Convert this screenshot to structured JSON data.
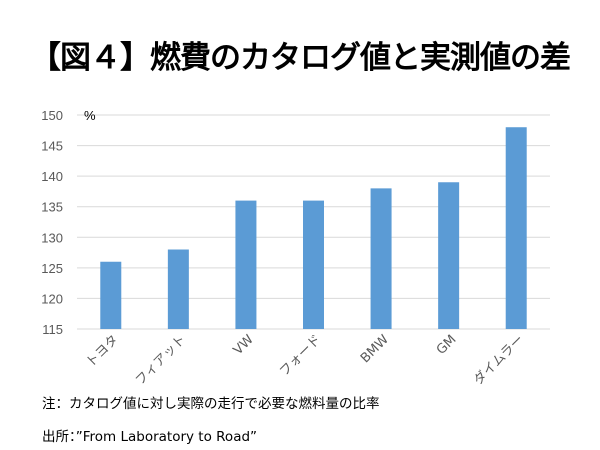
{
  "chart_data": {
    "type": "bar",
    "title": "【図４】燃費のカタログ値と実測値の差",
    "ylabel": "%",
    "xlabel": "",
    "categories": [
      "トヨタ",
      "フィアット",
      "VW",
      "フォード",
      "BMW",
      "GM",
      "ダイムラー"
    ],
    "values": [
      126,
      128,
      136,
      136,
      138,
      139,
      148
    ],
    "ylim": [
      115,
      150
    ],
    "yticks": [
      115,
      120,
      125,
      130,
      135,
      140,
      145,
      150
    ],
    "grid": true,
    "bar_color": "#5b9bd5",
    "grid_color": "#d9d9d9"
  },
  "notes": {
    "note": "注：カタログ値に対し実際の走行で必要な燃料量の比率",
    "source": "出所：”From Laboratory to Road”"
  }
}
